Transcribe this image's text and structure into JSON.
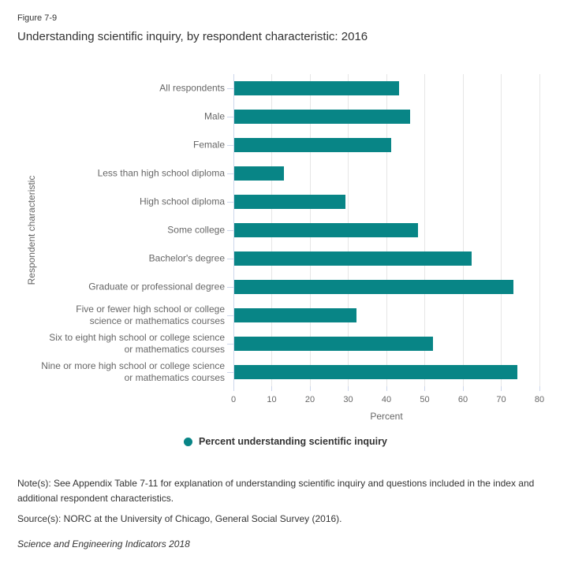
{
  "figure_label": "Figure 7-9",
  "title": "Understanding scientific inquiry, by respondent characteristic: 2016",
  "chart_data": {
    "type": "bar",
    "orientation": "horizontal",
    "title": "Understanding scientific inquiry, by respondent characteristic: 2016",
    "categories": [
      "All respondents",
      "Male",
      "Female",
      "Less than high school diploma",
      "High school diploma",
      "Some college",
      "Bachelor's degree",
      "Graduate or professional degree",
      "Five or fewer high school or college science or mathematics courses",
      "Six to eight high school or college science or mathematics courses",
      "Nine or more high school or college science or mathematics courses"
    ],
    "label_lines": [
      [
        "All respondents"
      ],
      [
        "Male"
      ],
      [
        "Female"
      ],
      [
        "Less than high school diploma"
      ],
      [
        "High school diploma"
      ],
      [
        "Some college"
      ],
      [
        "Bachelor's degree"
      ],
      [
        "Graduate or professional degree"
      ],
      [
        "Five or fewer high school or college",
        "science or mathematics courses"
      ],
      [
        "Six to eight high school or college science",
        "or mathematics courses"
      ],
      [
        "Nine or more high school or college science",
        "or mathematics courses"
      ]
    ],
    "values": [
      43,
      46,
      41,
      13,
      29,
      48,
      62,
      73,
      32,
      52,
      74
    ],
    "series_name": "Percent understanding scientific inquiry",
    "xlabel": "Percent",
    "ylabel": "Respondent characteristic",
    "xlim": [
      0,
      80
    ],
    "xticks": [
      0,
      10,
      20,
      30,
      40,
      50,
      60,
      70,
      80
    ],
    "grid": true,
    "legend_position": "bottom-center"
  },
  "legend": {
    "label": "Percent understanding scientific inquiry"
  },
  "notes": {
    "note": "Note(s): See Appendix Table 7-11 for explanation of understanding scientific inquiry and questions included in the index and additional respondent characteristics.",
    "source": "Source(s): NORC at the University of Chicago, General Social Survey (2016).",
    "attribution": "Science and Engineering Indicators 2018"
  },
  "colors": {
    "bar": "#088586",
    "gridline": "#e6e6e6",
    "axis_line": "#ccd6eb",
    "tick": "#ccd6eb",
    "label_text": "#666666",
    "title_text": "#333333"
  }
}
